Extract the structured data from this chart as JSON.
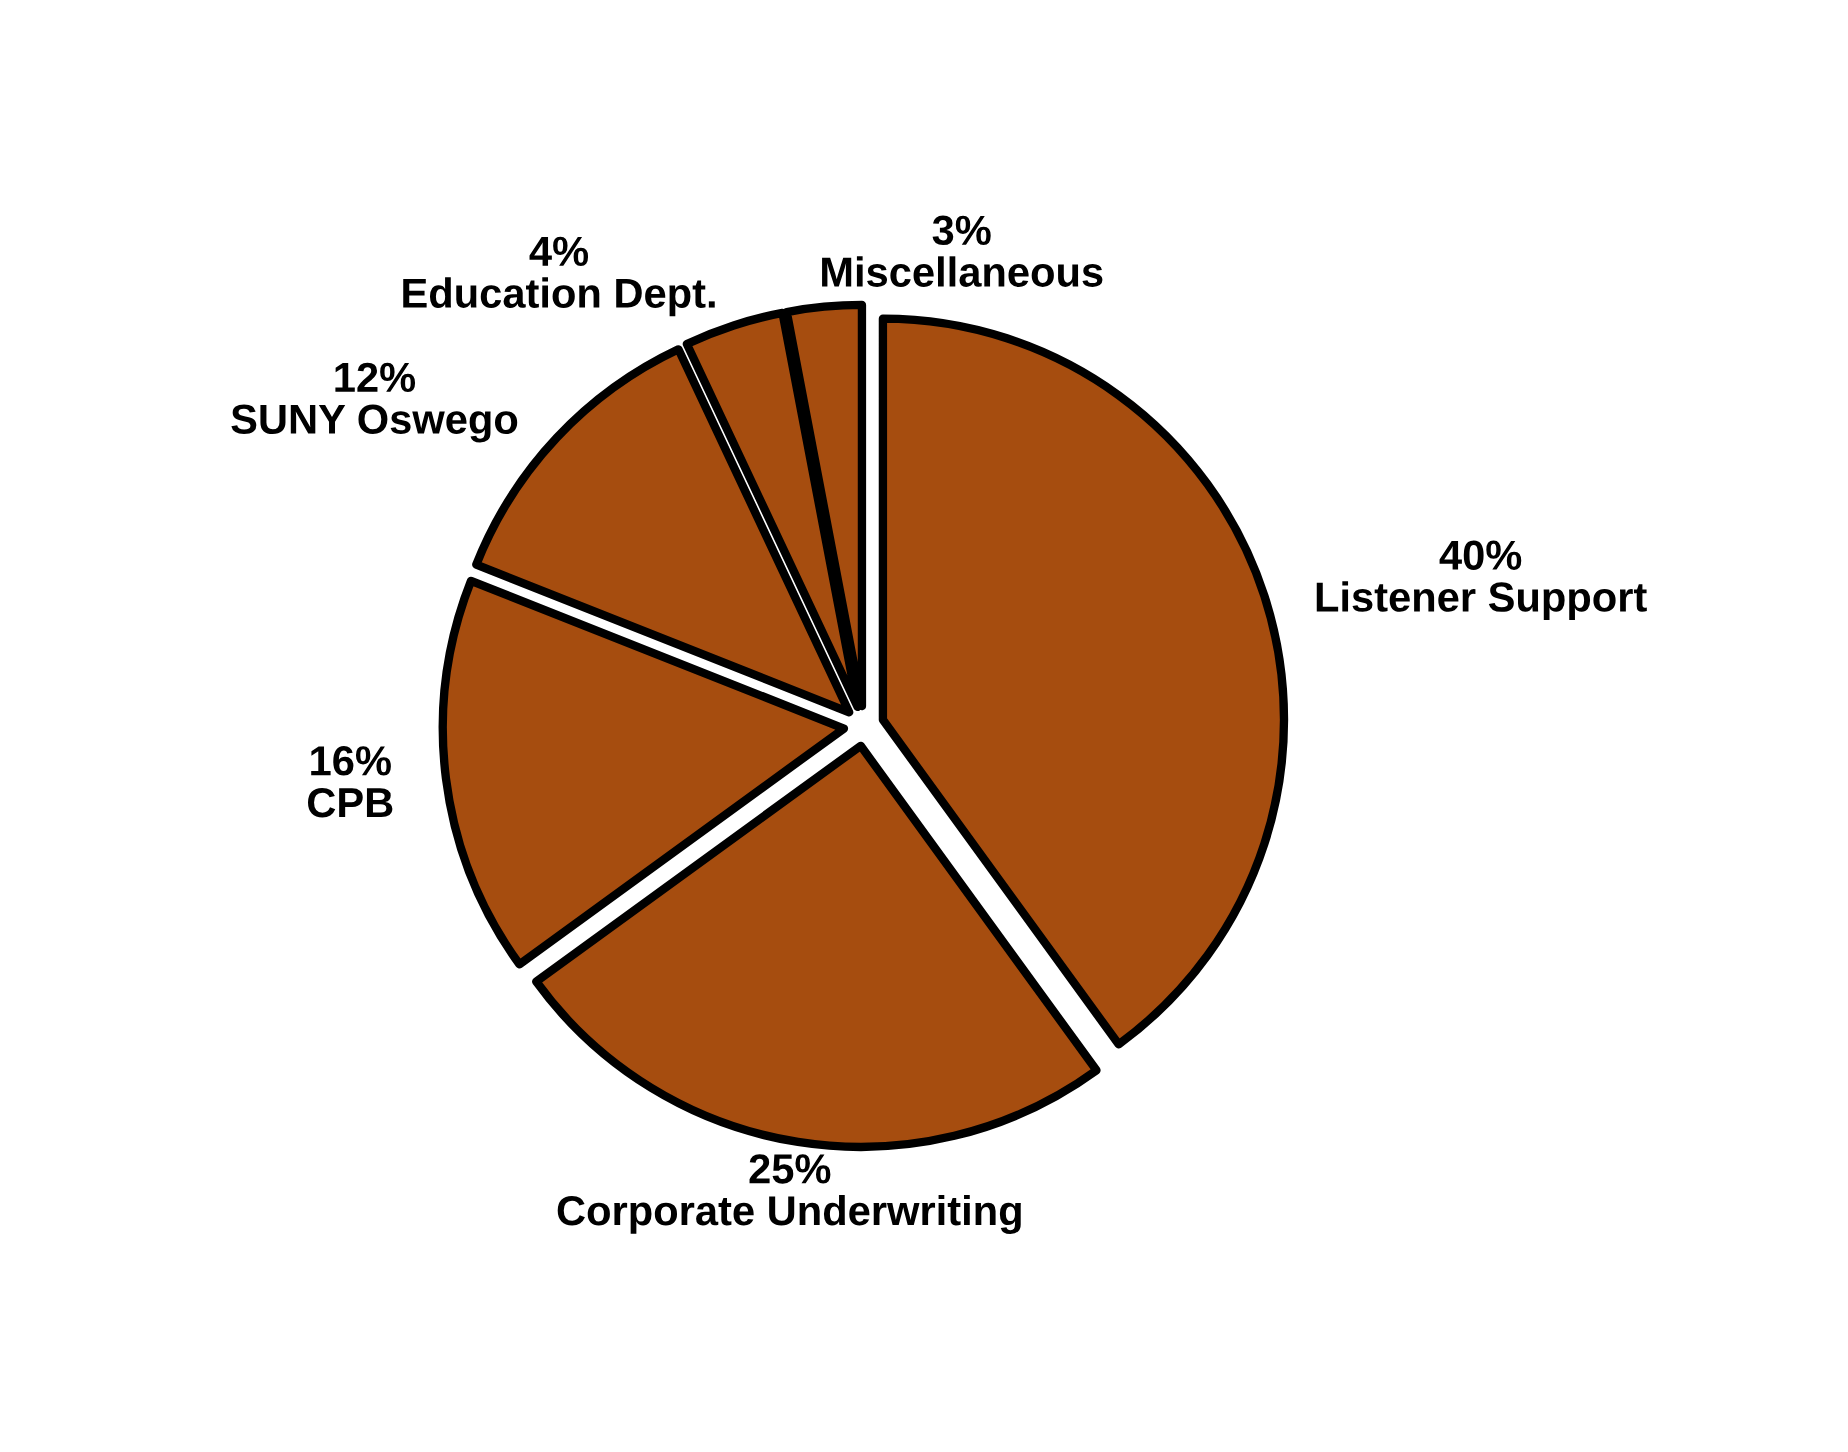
{
  "chart_data": {
    "type": "pie",
    "categories": [
      "Listener Support",
      "Corporate Underwriting",
      "CPB",
      "SUNY Oswego",
      "Education Dept.",
      "Miscellaneous"
    ],
    "values": [
      40,
      25,
      16,
      12,
      4,
      3
    ],
    "value_labels": [
      "40%",
      "25%",
      "16%",
      "12%",
      "4%",
      "3%"
    ],
    "colors": [
      "#a64d0f",
      "#a64d0f",
      "#a64d0f",
      "#a64d0f",
      "#a64d0f",
      "#a64d0f"
    ],
    "legend": false
  }
}
